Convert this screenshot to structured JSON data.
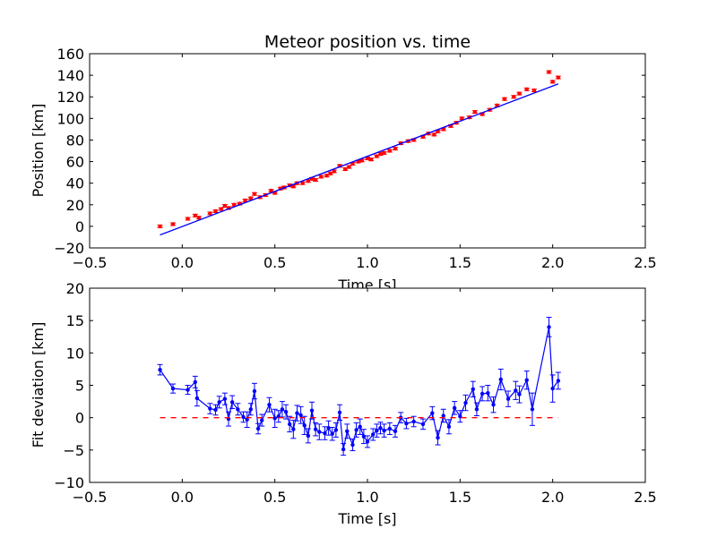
{
  "chart_data": [
    {
      "type": "scatter",
      "title": "Meteor position vs. time",
      "xlabel": "Time [s]",
      "ylabel": "Position [km]",
      "xlim": [
        -0.5,
        2.5
      ],
      "ylim": [
        -20,
        160
      ],
      "xticks": [
        "−0.5",
        "0.0",
        "0.5",
        "1.0",
        "1.5",
        "2.0",
        "2.5"
      ],
      "yticks": [
        "−20",
        "0",
        "20",
        "40",
        "60",
        "80",
        "100",
        "120",
        "140",
        "160"
      ],
      "grid": false,
      "marker_color": "#ff0000",
      "line_color": "#0000ff",
      "series": [
        {
          "kind": "points_with_errorbars",
          "x": [
            -0.12,
            -0.05,
            0.03,
            0.07,
            0.09,
            0.15,
            0.18,
            0.21,
            0.23,
            0.25,
            0.28,
            0.31,
            0.34,
            0.37,
            0.39,
            0.42,
            0.45,
            0.48,
            0.5,
            0.53,
            0.55,
            0.58,
            0.6,
            0.62,
            0.65,
            0.68,
            0.7,
            0.72,
            0.75,
            0.78,
            0.8,
            0.82,
            0.85,
            0.88,
            0.9,
            0.92,
            0.95,
            0.97,
            1.0,
            1.02,
            1.05,
            1.07,
            1.09,
            1.12,
            1.15,
            1.18,
            1.22,
            1.25,
            1.3,
            1.33,
            1.36,
            1.38,
            1.41,
            1.45,
            1.48,
            1.51,
            1.55,
            1.58,
            1.62,
            1.66,
            1.7,
            1.74,
            1.79,
            1.82,
            1.86,
            1.9,
            1.98,
            2.0,
            2.03
          ],
          "y": [
            0,
            2,
            7,
            10,
            8,
            12,
            14,
            16,
            19,
            17,
            20,
            21,
            24,
            26,
            30,
            27,
            29,
            33,
            31,
            35,
            36,
            38,
            37,
            40,
            40,
            42,
            44,
            43,
            46,
            47,
            49,
            51,
            56,
            53,
            55,
            58,
            60,
            61,
            63,
            62,
            65,
            67,
            68,
            70,
            72,
            77,
            79,
            80,
            83,
            86,
            85,
            88,
            90,
            93,
            96,
            100,
            101,
            106,
            104,
            108,
            112,
            118,
            120,
            123,
            127,
            126,
            143,
            134,
            138
          ],
          "yerr": 1.2
        },
        {
          "kind": "fit_line",
          "x": [
            -0.12,
            2.03
          ],
          "y": [
            -8,
            132
          ]
        }
      ]
    },
    {
      "type": "line",
      "title": "",
      "xlabel": "Time [s]",
      "ylabel": "Fit deviation [km]",
      "xlim": [
        -0.5,
        2.5
      ],
      "ylim": [
        -10,
        20
      ],
      "xticks": [
        "−0.5",
        "0.0",
        "0.5",
        "1.0",
        "1.5",
        "2.0",
        "2.5"
      ],
      "yticks": [
        "−10",
        "−5",
        "0",
        "5",
        "10",
        "15",
        "20"
      ],
      "grid": false,
      "line_color": "#0000ff",
      "zero_line_color": "#ff0000",
      "series": [
        {
          "kind": "line_with_errorbars",
          "x": [
            -0.12,
            -0.05,
            0.03,
            0.07,
            0.08,
            0.15,
            0.18,
            0.2,
            0.23,
            0.25,
            0.27,
            0.3,
            0.33,
            0.35,
            0.37,
            0.39,
            0.41,
            0.43,
            0.47,
            0.5,
            0.52,
            0.54,
            0.56,
            0.58,
            0.6,
            0.62,
            0.64,
            0.66,
            0.68,
            0.7,
            0.72,
            0.74,
            0.77,
            0.79,
            0.81,
            0.83,
            0.85,
            0.87,
            0.89,
            0.92,
            0.94,
            0.96,
            0.98,
            1.0,
            1.03,
            1.05,
            1.07,
            1.09,
            1.12,
            1.15,
            1.18,
            1.21,
            1.25,
            1.3,
            1.35,
            1.38,
            1.41,
            1.44,
            1.47,
            1.5,
            1.53,
            1.57,
            1.59,
            1.62,
            1.65,
            1.68,
            1.72,
            1.76,
            1.8,
            1.82,
            1.86,
            1.89,
            1.98,
            2.0,
            2.03
          ],
          "y": [
            7.4,
            4.5,
            4.3,
            5.5,
            3.0,
            1.4,
            1.2,
            2.4,
            2.9,
            -0.2,
            2.4,
            1.3,
            0.1,
            -0.3,
            1.3,
            4.1,
            -1.7,
            -0.4,
            2.0,
            -0.1,
            0.2,
            1.3,
            0.9,
            -1.0,
            -1.8,
            0.7,
            0.4,
            -1.2,
            -2.8,
            1.1,
            -1.8,
            -2.2,
            -2.4,
            -1.6,
            -2.5,
            -1.9,
            0.8,
            -4.9,
            -2.1,
            -4.2,
            -1.9,
            -1.4,
            -2.9,
            -3.7,
            -2.6,
            -2.0,
            -1.6,
            -2.0,
            -1.7,
            -2.1,
            0.0,
            -0.9,
            -0.6,
            -1.0,
            0.7,
            -3.1,
            0.3,
            -1.4,
            1.5,
            0.2,
            2.3,
            4.4,
            1.3,
            3.7,
            3.8,
            2.0,
            5.9,
            2.9,
            4.2,
            3.6,
            5.8,
            1.3,
            14.0,
            4.5,
            5.7
          ],
          "yerr": [
            0.8,
            0.7,
            0.7,
            0.9,
            1.2,
            0.8,
            0.8,
            0.9,
            0.9,
            1.1,
            1.0,
            0.9,
            0.8,
            1.2,
            0.9,
            1.2,
            0.8,
            0.9,
            1.1,
            1.4,
            0.9,
            1.2,
            1.1,
            1.2,
            1.4,
            1.2,
            1.3,
            1.4,
            1.1,
            1.3,
            1.0,
            1.2,
            1.0,
            1.1,
            1.0,
            1.1,
            1.2,
            0.9,
            1.1,
            0.9,
            1.1,
            1.2,
            1.1,
            0.9,
            0.9,
            1.0,
            0.9,
            1.0,
            0.9,
            0.9,
            0.8,
            0.8,
            0.8,
            0.8,
            1.0,
            1.1,
            1.0,
            1.1,
            1.0,
            0.9,
            1.2,
            1.2,
            1.0,
            1.1,
            1.2,
            1.2,
            1.6,
            1.2,
            1.4,
            1.3,
            1.4,
            2.5,
            1.5,
            2.1,
            1.3
          ]
        },
        {
          "kind": "zero_reference_dashed",
          "x": [
            -0.12,
            2.03
          ],
          "y": [
            0,
            0
          ]
        }
      ]
    }
  ]
}
